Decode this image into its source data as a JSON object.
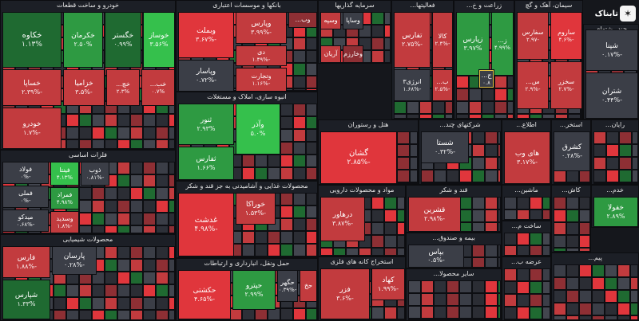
{
  "colors": {
    "strong_red": "#e0363c",
    "red": "#c23b3e",
    "dark_red": "#8e2f34",
    "neutral": "#3b3e47",
    "green": "#2e9a42",
    "bright_green": "#35c04c",
    "dark_green": "#1f6a31"
  },
  "logo": {
    "name": "تابناک"
  },
  "sectors": [
    {
      "id": "auto",
      "title": "خودرو و ساخت قطعات",
      "tiles": [
        {
          "n": "خکاوه",
          "p": "۱.۱۳%",
          "c": "dark_green"
        },
        {
          "n": "خکرمان",
          "p": "۲.۵۰%",
          "c": "green"
        },
        {
          "n": "خگستر",
          "p": "۰.۹۹%",
          "c": "dark_green"
        },
        {
          "n": "خوساز",
          "p": "۳.۵۶%",
          "c": "bright_green"
        },
        {
          "n": "خساپا",
          "p": "-۲.۳۹%",
          "c": "red"
        },
        {
          "n": "خزامیا",
          "p": "-۳.۵%",
          "c": "red"
        },
        {
          "n": "خودرو",
          "p": "-۱.۷%",
          "c": "red"
        },
        {
          "n": "خچ...",
          "p": "۲.۳%",
          "c": "red"
        },
        {
          "n": "خب...",
          "p": "۰.۷%",
          "c": "red"
        }
      ]
    },
    {
      "id": "bank",
      "title": "بانکها و موسسات اعتباری",
      "tiles": [
        {
          "n": "وبملت",
          "p": "-۳.۶۷%",
          "c": "strong_red"
        },
        {
          "n": "وپارس",
          "p": "-۳.۹۹%",
          "c": "red"
        },
        {
          "n": "دی",
          "p": "-۱.۴۹%",
          "c": "red"
        },
        {
          "n": "وپاسار",
          "p": "-۰.۷۲%",
          "c": "neutral"
        },
        {
          "n": "وتجارت",
          "p": "-۱.۱۶%",
          "c": "red"
        },
        {
          "n": "وب...",
          "p": "",
          "c": "dark_red"
        }
      ]
    },
    {
      "id": "invest",
      "title": "سرمایه گذاریها",
      "tiles": [
        {
          "n": "وسپه",
          "p": "",
          "c": "red"
        },
        {
          "n": "وساپا",
          "p": "",
          "c": "neutral"
        },
        {
          "n": "آریان",
          "p": "",
          "c": "red"
        },
        {
          "n": "وخارزم",
          "p": "",
          "c": "dark_red"
        }
      ]
    },
    {
      "id": "misc",
      "title": "فعالیتها...",
      "tiles": [
        {
          "n": "تفارس",
          "p": "-۲.۷۵%",
          "c": "red"
        },
        {
          "n": "کالا",
          "p": "-۲.۴%",
          "c": "red"
        },
        {
          "n": "انرژی۳",
          "p": "-۱.۶۸%",
          "c": "neutral"
        },
        {
          "n": "ب...",
          "p": "-۲.۵%",
          "c": "red"
        }
      ]
    },
    {
      "id": "agri",
      "title": "زراعت و خ...",
      "tiles": [
        {
          "n": "زپارس",
          "p": "۳.۹۷%",
          "c": "green"
        },
        {
          "n": "ز...",
          "p": "۴.۹۹%",
          "c": "green"
        },
        {
          "n": "ج...",
          "p": "۰.۸",
          "c": "neutral"
        }
      ]
    },
    {
      "id": "cement",
      "title": "سیمان، آهک و گچ",
      "tiles": [
        {
          "n": "سفارس",
          "p": "-۲.۹۷",
          "c": "red"
        },
        {
          "n": "ساروم",
          "p": "-۴.۶%",
          "c": "strong_red"
        },
        {
          "n": "س...",
          "p": "-۲.۹%",
          "c": "red"
        },
        {
          "n": "سخزر",
          "p": "-۲.۷%",
          "c": "red"
        }
      ]
    },
    {
      "id": "multi",
      "title": "چند رشته‌ای",
      "tiles": [
        {
          "n": "شپنا",
          "p": "-۰.۱۷%",
          "c": "neutral"
        },
        {
          "n": "شتران",
          "p": "-۰.۴۴%",
          "c": "neutral"
        }
      ]
    },
    {
      "id": "metal",
      "title": "فلزات اساسی",
      "tiles": [
        {
          "n": "فولاد",
          "p": "-۰%",
          "c": "neutral"
        },
        {
          "n": "فملی",
          "p": "-۰%",
          "c": "neutral"
        },
        {
          "n": "فینتا",
          "p": "۴.۱۳%",
          "c": "bright_green"
        },
        {
          "n": "فمراد",
          "p": "۴.۹۸%",
          "c": "green"
        },
        {
          "n": "ذوب",
          "p": "-۰.۸۱%",
          "c": "neutral"
        },
        {
          "n": "میدکو",
          "p": "-۰.۶۸%",
          "c": "neutral"
        },
        {
          "n": "وسدید",
          "p": "-۱.۸%",
          "c": "red"
        }
      ]
    },
    {
      "id": "chem",
      "title": "محصولات شیمیایی",
      "tiles": [
        {
          "n": "فارس",
          "p": "-۱.۸۸%",
          "c": "red"
        },
        {
          "n": "پارسان",
          "p": "-۰.۲۸%",
          "c": "neutral"
        },
        {
          "n": "شپارس",
          "p": "۱.۳۳%",
          "c": "dark_green"
        }
      ]
    },
    {
      "id": "realestate",
      "title": "انبوه سازی، املاک و مستغلات",
      "tiles": [
        {
          "n": "ثنور",
          "p": "۲.۹۳%",
          "c": "green"
        },
        {
          "n": "وآذر",
          "p": "۵.۰%",
          "c": "bright_green"
        },
        {
          "n": "ثفارس",
          "p": "۱.۶۶%",
          "c": "green"
        }
      ]
    },
    {
      "id": "food",
      "title": "محصولات غذایی و آشامیدنی به جز قند و شکر",
      "tiles": [
        {
          "n": "غدشت",
          "p": "-۴.۹۸%",
          "c": "strong_red"
        },
        {
          "n": "خوراکا",
          "p": "-۱.۵۳%",
          "c": "red"
        }
      ]
    },
    {
      "id": "transport",
      "title": "حمل ونقل، انبارداری و ارتباطات",
      "tiles": [
        {
          "n": "حکشتی",
          "p": "-۴.۶۵%",
          "c": "strong_red"
        },
        {
          "n": "حپترو",
          "p": "۲.۹۹%",
          "c": "green"
        },
        {
          "n": "حگهر",
          "p": "-۰.۳۹%",
          "c": "neutral"
        },
        {
          "n": "حخ",
          "p": "",
          "c": "red"
        }
      ]
    },
    {
      "id": "hotel",
      "title": "هتل و رستوران",
      "tiles": [
        {
          "n": "گشان",
          "p": "-۲.۸۵%",
          "c": "strong_red"
        }
      ]
    },
    {
      "id": "tech",
      "title": "شرکتهای چند...",
      "tiles": [
        {
          "n": "شستا",
          "p": "-۰.۳۲%",
          "c": "neutral"
        }
      ]
    },
    {
      "id": "info",
      "title": "اطلاع...",
      "tiles": [
        {
          "n": "های وب",
          "p": "-۳.۱۷%",
          "c": "red"
        }
      ]
    },
    {
      "id": "agric2",
      "title": "استخر...",
      "tiles": [
        {
          "n": "کشرق",
          "p": "-۰.۲۸%",
          "c": "neutral"
        }
      ]
    },
    {
      "id": "computer",
      "title": "رایان...",
      "tiles": []
    },
    {
      "id": "pharma",
      "title": "مواد و محصولات دارویی",
      "tiles": [
        {
          "n": "درهاور",
          "p": "-۳.۸۷%",
          "c": "red"
        }
      ]
    },
    {
      "id": "sugar",
      "title": "قند و شکر",
      "tiles": [
        {
          "n": "قشرین",
          "p": "-۲.۹۸%",
          "c": "red"
        }
      ]
    },
    {
      "id": "machine",
      "title": "ماشین...",
      "tiles": []
    },
    {
      "id": "build",
      "title": "ساخت م...",
      "tiles": []
    },
    {
      "id": "insurance",
      "title": "بیمه و صندوق...",
      "tiles": [
        {
          "n": "بپاس",
          "p": "-۰.۵%",
          "c": "neutral"
        }
      ]
    },
    {
      "id": "nonmetal",
      "title": "استخراج کانه های فلزی",
      "tiles": [
        {
          "n": "فزر",
          "p": "-۳.۶%",
          "c": "red"
        },
        {
          "n": "کهاد",
          "p": "-۱.۹۹%",
          "c": "red"
        }
      ]
    },
    {
      "id": "other",
      "title": "سایر محصولا...",
      "tiles": []
    },
    {
      "id": "retail",
      "title": "عرضه ب...",
      "tiles": []
    },
    {
      "id": "equip",
      "title": "خدم...",
      "tiles": [
        {
          "n": "خفولا",
          "p": "۲.۸۹%",
          "c": "green"
        }
      ]
    },
    {
      "id": "mining",
      "title": "کاش...",
      "tiles": []
    },
    {
      "id": "pem",
      "title": "پیم...",
      "tiles": []
    }
  ]
}
